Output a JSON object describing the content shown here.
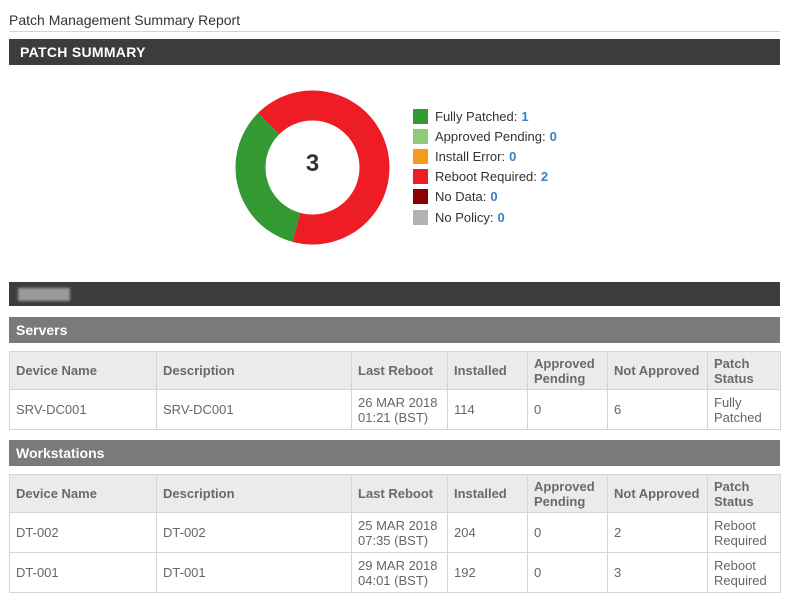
{
  "page_title": "Patch Management Summary Report",
  "summary": {
    "header": "PATCH SUMMARY",
    "total": "3",
    "legend": [
      {
        "label": "Fully Patched:",
        "count": "1",
        "color": "#339933"
      },
      {
        "label": "Approved Pending:",
        "count": "0",
        "color": "#8fca7a"
      },
      {
        "label": "Install Error:",
        "count": "0",
        "color": "#f59a1d"
      },
      {
        "label": "Reboot Required:",
        "count": "2",
        "color": "#ee1c25"
      },
      {
        "label": "No Data:",
        "count": "0",
        "color": "#8b0000"
      },
      {
        "label": "No Policy:",
        "count": "0",
        "color": "#b3b3b3"
      }
    ],
    "donut": [
      {
        "name": "Fully Patched",
        "value": 1,
        "color": "#339933"
      },
      {
        "name": "Reboot Required",
        "value": 2,
        "color": "#ee1c25"
      }
    ]
  },
  "columns": [
    "Device Name",
    "Description",
    "Last Reboot",
    "Installed",
    "Approved Pending",
    "Not Approved",
    "Patch Status"
  ],
  "servers": {
    "title": "Servers",
    "rows": [
      {
        "name": "SRV-DC001",
        "description": "SRV-DC001",
        "reboot_date": "26 MAR 2018",
        "reboot_time": "01:21 (BST)",
        "installed": "114",
        "approved_pending": "0",
        "not_approved": "6",
        "status": "Fully Patched"
      }
    ]
  },
  "workstations": {
    "title": "Workstations",
    "rows": [
      {
        "name": "DT-002",
        "description": "DT-002",
        "reboot_date": "25 MAR 2018",
        "reboot_time": "07:35 (BST)",
        "installed": "204",
        "approved_pending": "0",
        "not_approved": "2",
        "status": "Reboot Required"
      },
      {
        "name": "DT-001",
        "description": "DT-001",
        "reboot_date": "29 MAR 2018",
        "reboot_time": "04:01 (BST)",
        "installed": "192",
        "approved_pending": "0",
        "not_approved": "3",
        "status": "Reboot Required"
      }
    ]
  }
}
